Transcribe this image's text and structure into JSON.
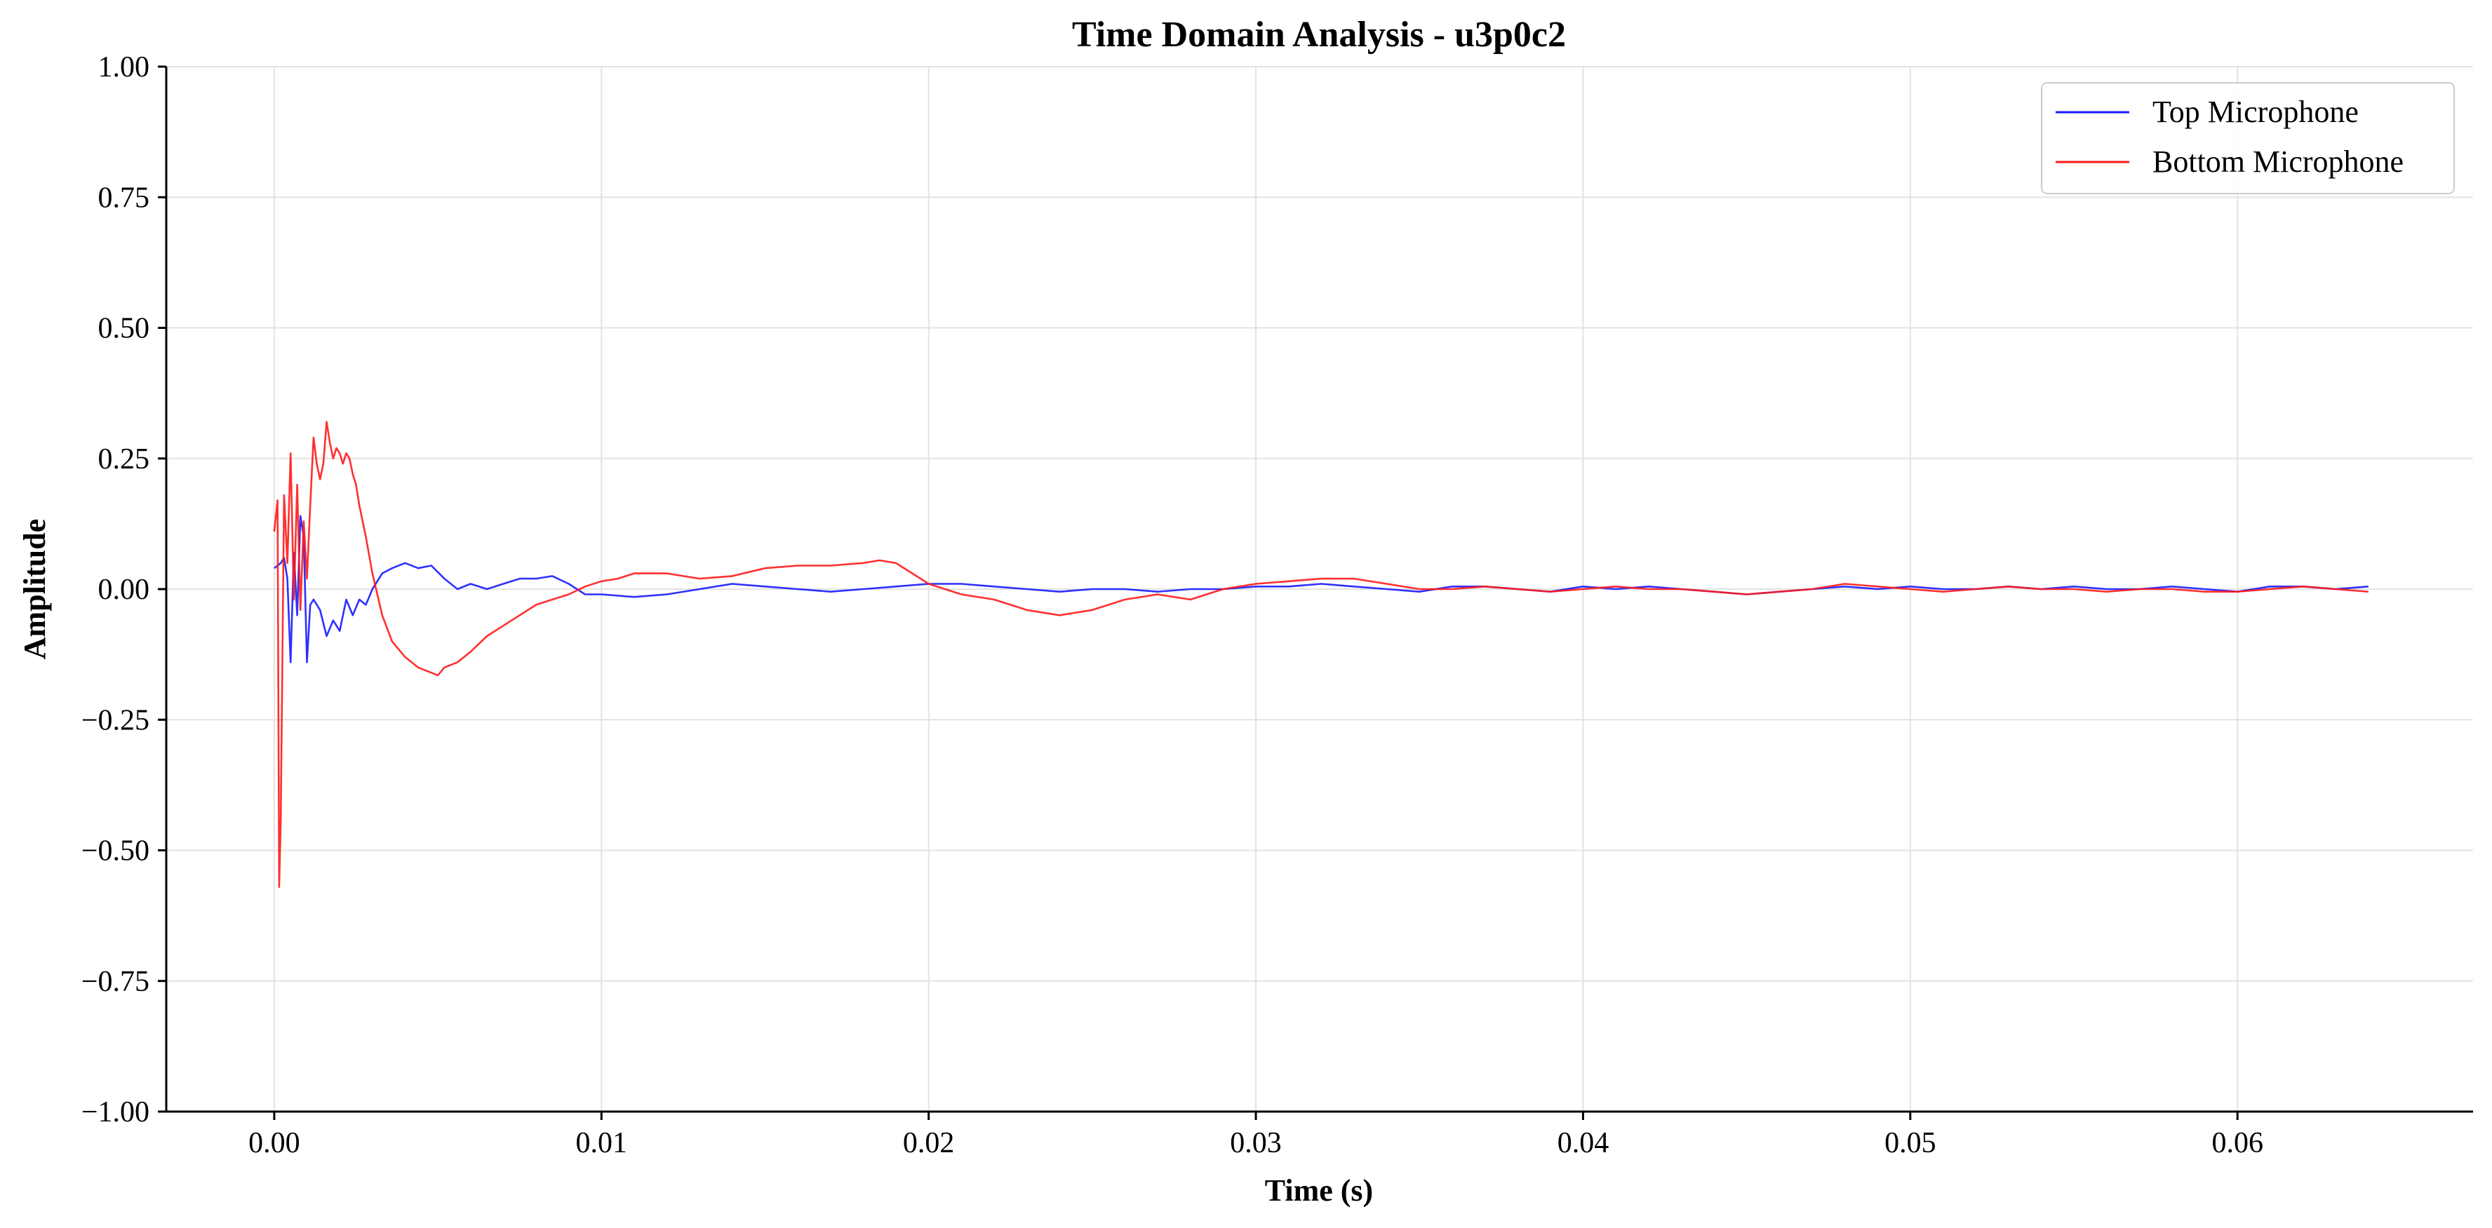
{
  "chart_data": {
    "type": "line",
    "title": "Time Domain Analysis - u3p0c2",
    "xlabel": "Time (s)",
    "ylabel": "Amplitude",
    "xlim": [
      -0.0033,
      0.0672
    ],
    "ylim": [
      -1.0,
      1.0
    ],
    "xticks": [
      0.0,
      0.01,
      0.02,
      0.03,
      0.04,
      0.05,
      0.06
    ],
    "xtick_labels": [
      "0.00",
      "0.01",
      "0.02",
      "0.03",
      "0.04",
      "0.05",
      "0.06"
    ],
    "yticks": [
      1.0,
      0.75,
      0.5,
      0.25,
      0.0,
      -0.25,
      -0.5,
      -0.75,
      -1.0
    ],
    "ytick_labels": [
      "1.00",
      "0.75",
      "0.50",
      "0.25",
      "0.00",
      "−0.25",
      "−0.50",
      "−0.75",
      "−1.00"
    ],
    "grid": true,
    "legend_position": "top-right",
    "series": [
      {
        "name": "Top Microphone",
        "color": "#1a1aff",
        "x": [
          0.0,
          0.0002,
          0.0003,
          0.0004,
          0.0005,
          0.0006,
          0.0007,
          0.0008,
          0.0009,
          0.001,
          0.0011,
          0.0012,
          0.0014,
          0.0016,
          0.0018,
          0.002,
          0.0022,
          0.0024,
          0.0026,
          0.0028,
          0.003,
          0.0033,
          0.0036,
          0.004,
          0.0044,
          0.0048,
          0.0052,
          0.0056,
          0.006,
          0.0065,
          0.007,
          0.0075,
          0.008,
          0.0085,
          0.009,
          0.0095,
          0.01,
          0.011,
          0.012,
          0.013,
          0.014,
          0.015,
          0.016,
          0.017,
          0.018,
          0.019,
          0.02,
          0.021,
          0.022,
          0.023,
          0.024,
          0.025,
          0.026,
          0.027,
          0.028,
          0.029,
          0.03,
          0.031,
          0.032,
          0.033,
          0.034,
          0.035,
          0.036,
          0.037,
          0.038,
          0.039,
          0.04,
          0.041,
          0.042,
          0.043,
          0.044,
          0.045,
          0.046,
          0.047,
          0.048,
          0.049,
          0.05,
          0.051,
          0.052,
          0.053,
          0.054,
          0.055,
          0.056,
          0.057,
          0.058,
          0.059,
          0.06,
          0.061,
          0.062,
          0.063,
          0.064
        ],
        "y": [
          0.04,
          0.05,
          0.06,
          0.02,
          -0.14,
          0.07,
          -0.05,
          0.14,
          0.1,
          -0.14,
          -0.03,
          -0.02,
          -0.04,
          -0.09,
          -0.06,
          -0.08,
          -0.02,
          -0.05,
          -0.02,
          -0.03,
          0.0,
          0.03,
          0.04,
          0.05,
          0.04,
          0.045,
          0.02,
          0.0,
          0.01,
          0.0,
          0.01,
          0.02,
          0.02,
          0.025,
          0.01,
          -0.01,
          -0.01,
          -0.015,
          -0.01,
          0.0,
          0.01,
          0.005,
          0.0,
          -0.005,
          0.0,
          0.005,
          0.01,
          0.01,
          0.005,
          0.0,
          -0.005,
          0.0,
          0.0,
          -0.005,
          0.0,
          0.0,
          0.005,
          0.005,
          0.01,
          0.005,
          0.0,
          -0.005,
          0.005,
          0.005,
          0.0,
          -0.005,
          0.005,
          0.0,
          0.005,
          0.0,
          -0.005,
          -0.01,
          -0.005,
          0.0,
          0.005,
          0.0,
          0.005,
          0.0,
          0.0,
          0.005,
          0.0,
          0.005,
          0.0,
          0.0,
          0.005,
          0.0,
          -0.005,
          0.005,
          0.005,
          0.0,
          0.005
        ]
      },
      {
        "name": "Bottom Microphone",
        "color": "#ff1a1a",
        "x": [
          0.0,
          0.0001,
          0.00015,
          0.0002,
          0.0003,
          0.0004,
          0.0005,
          0.0006,
          0.0007,
          0.0008,
          0.0009,
          0.001,
          0.0011,
          0.0012,
          0.0013,
          0.0014,
          0.0015,
          0.0016,
          0.0017,
          0.0018,
          0.0019,
          0.002,
          0.0021,
          0.0022,
          0.0023,
          0.0024,
          0.0025,
          0.0026,
          0.0028,
          0.003,
          0.0033,
          0.0036,
          0.004,
          0.0044,
          0.0048,
          0.005,
          0.0052,
          0.0056,
          0.006,
          0.0065,
          0.007,
          0.0075,
          0.008,
          0.0085,
          0.009,
          0.0095,
          0.01,
          0.0105,
          0.011,
          0.0115,
          0.012,
          0.013,
          0.014,
          0.015,
          0.016,
          0.017,
          0.018,
          0.0185,
          0.019,
          0.0195,
          0.02,
          0.021,
          0.022,
          0.023,
          0.024,
          0.025,
          0.026,
          0.027,
          0.028,
          0.029,
          0.03,
          0.031,
          0.032,
          0.033,
          0.034,
          0.035,
          0.036,
          0.037,
          0.038,
          0.039,
          0.04,
          0.041,
          0.042,
          0.043,
          0.044,
          0.045,
          0.046,
          0.047,
          0.048,
          0.049,
          0.05,
          0.051,
          0.052,
          0.053,
          0.054,
          0.055,
          0.056,
          0.057,
          0.058,
          0.059,
          0.06,
          0.061,
          0.062,
          0.063,
          0.064
        ],
        "y": [
          0.11,
          0.17,
          -0.57,
          -0.44,
          0.18,
          0.05,
          0.26,
          -0.02,
          0.2,
          -0.04,
          0.13,
          0.02,
          0.16,
          0.29,
          0.24,
          0.21,
          0.24,
          0.32,
          0.28,
          0.25,
          0.27,
          0.26,
          0.24,
          0.26,
          0.25,
          0.22,
          0.2,
          0.16,
          0.1,
          0.03,
          -0.05,
          -0.1,
          -0.13,
          -0.15,
          -0.16,
          -0.165,
          -0.15,
          -0.14,
          -0.12,
          -0.09,
          -0.07,
          -0.05,
          -0.03,
          -0.02,
          -0.01,
          0.005,
          0.015,
          0.02,
          0.03,
          0.03,
          0.03,
          0.02,
          0.025,
          0.04,
          0.045,
          0.045,
          0.05,
          0.055,
          0.05,
          0.03,
          0.01,
          -0.01,
          -0.02,
          -0.04,
          -0.05,
          -0.04,
          -0.02,
          -0.01,
          -0.02,
          0.0,
          0.01,
          0.015,
          0.02,
          0.02,
          0.01,
          0.0,
          0.0,
          0.005,
          0.0,
          -0.005,
          0.0,
          0.005,
          0.0,
          0.0,
          -0.005,
          -0.01,
          -0.005,
          0.0,
          0.01,
          0.005,
          0.0,
          -0.005,
          0.0,
          0.005,
          0.0,
          0.0,
          -0.005,
          0.0,
          0.0,
          -0.005,
          -0.005,
          0.0,
          0.005,
          0.0,
          -0.005
        ]
      }
    ]
  }
}
